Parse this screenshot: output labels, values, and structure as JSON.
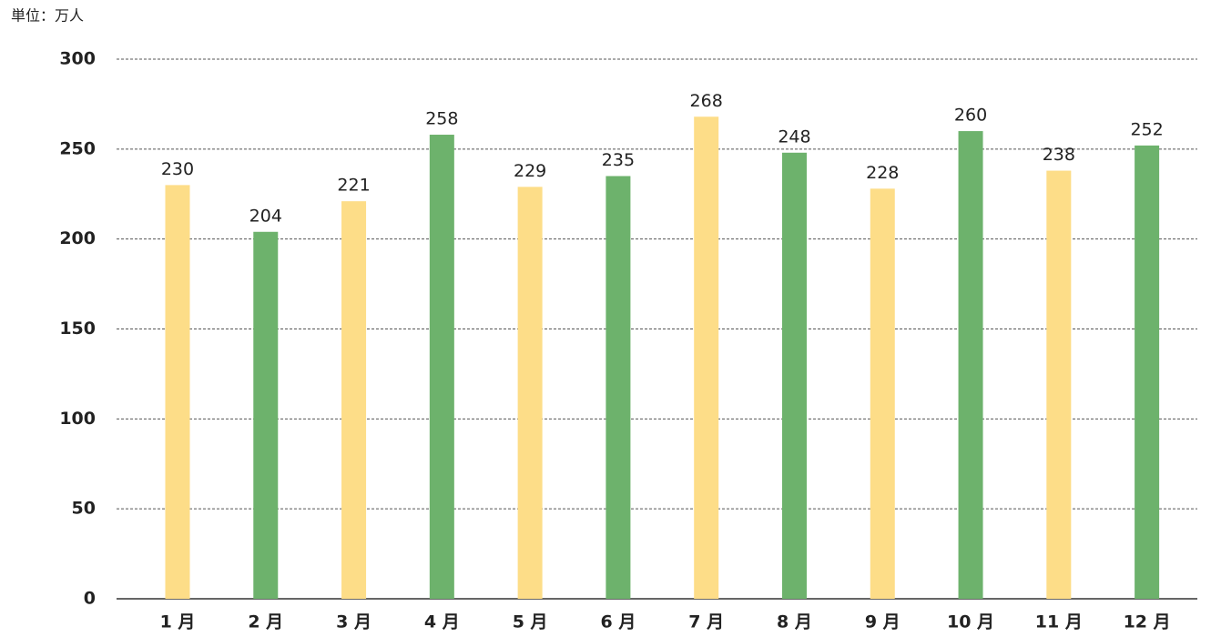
{
  "chart_data": {
    "type": "bar",
    "unit_label": "単位：万人",
    "categories": [
      "1 月",
      "2 月",
      "3 月",
      "4 月",
      "5 月",
      "6 月",
      "7 月",
      "8 月",
      "9 月",
      "10 月",
      "11 月",
      "12 月"
    ],
    "values": [
      230,
      204,
      221,
      258,
      229,
      235,
      268,
      248,
      228,
      260,
      238,
      252
    ],
    "colors": [
      "#fddd88",
      "#6db26c",
      "#fddd88",
      "#6db26c",
      "#fddd88",
      "#6db26c",
      "#fddd88",
      "#6db26c",
      "#fddd88",
      "#6db26c",
      "#fddd88",
      "#6db26c"
    ],
    "ylim": [
      0,
      300
    ],
    "yticks": [
      0,
      50,
      100,
      150,
      200,
      250,
      300
    ],
    "grid": true
  }
}
